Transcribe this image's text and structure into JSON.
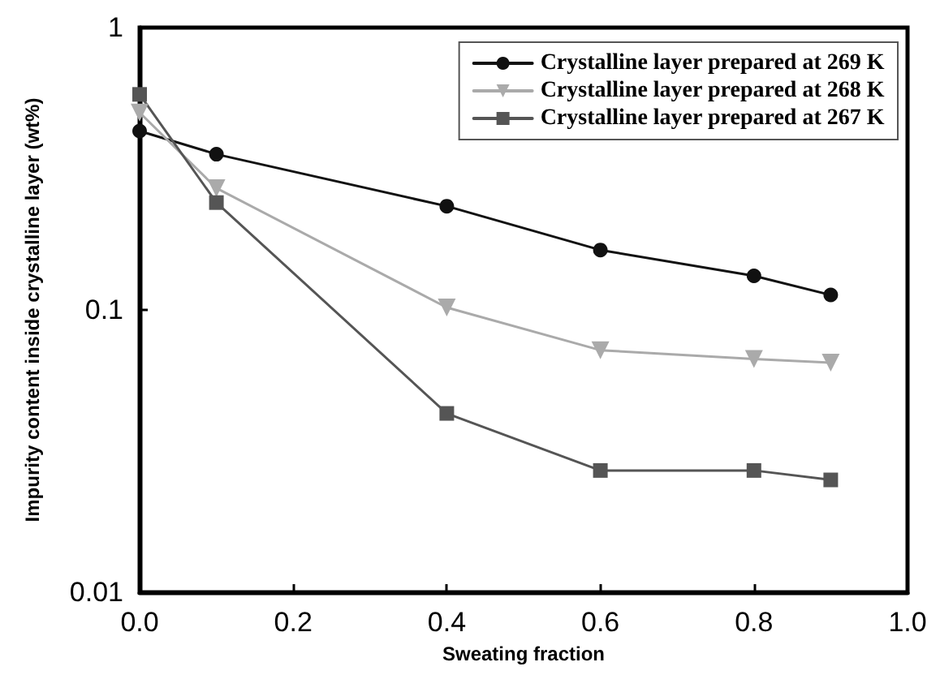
{
  "chart_data": {
    "type": "line",
    "xlabel": "Sweating fraction",
    "ylabel": "Impurity content inside crystalline layer (wt%)",
    "x": [
      0.0,
      0.1,
      0.4,
      0.6,
      0.8,
      0.9
    ],
    "series": [
      {
        "name": "Crystalline layer prepared at 269 K",
        "color": "#111111",
        "marker": "circle",
        "values": [
          0.43,
          0.356,
          0.233,
          0.163,
          0.132,
          0.113
        ]
      },
      {
        "name": "Crystalline layer prepared at 268 K",
        "color": "#aaaaaa",
        "marker": "triangle",
        "values": [
          0.5,
          0.27,
          0.102,
          0.072,
          0.067,
          0.065
        ]
      },
      {
        "name": "Crystalline layer prepared at 267 K",
        "color": "#555555",
        "marker": "square",
        "values": [
          0.58,
          0.24,
          0.043,
          0.027,
          0.027,
          0.025
        ]
      }
    ],
    "xlim": [
      0,
      1
    ],
    "xticks": [
      {
        "value": 0,
        "label": "0.0"
      },
      0.2,
      0.4,
      0.6,
      0.8,
      {
        "value": 1,
        "label": "1.0"
      }
    ],
    "ylim": [
      0.01,
      1
    ],
    "yticks": [
      0.01,
      0.1,
      1
    ],
    "log": "y",
    "grid": false,
    "legend": "top right",
    "line_style": "solid"
  }
}
